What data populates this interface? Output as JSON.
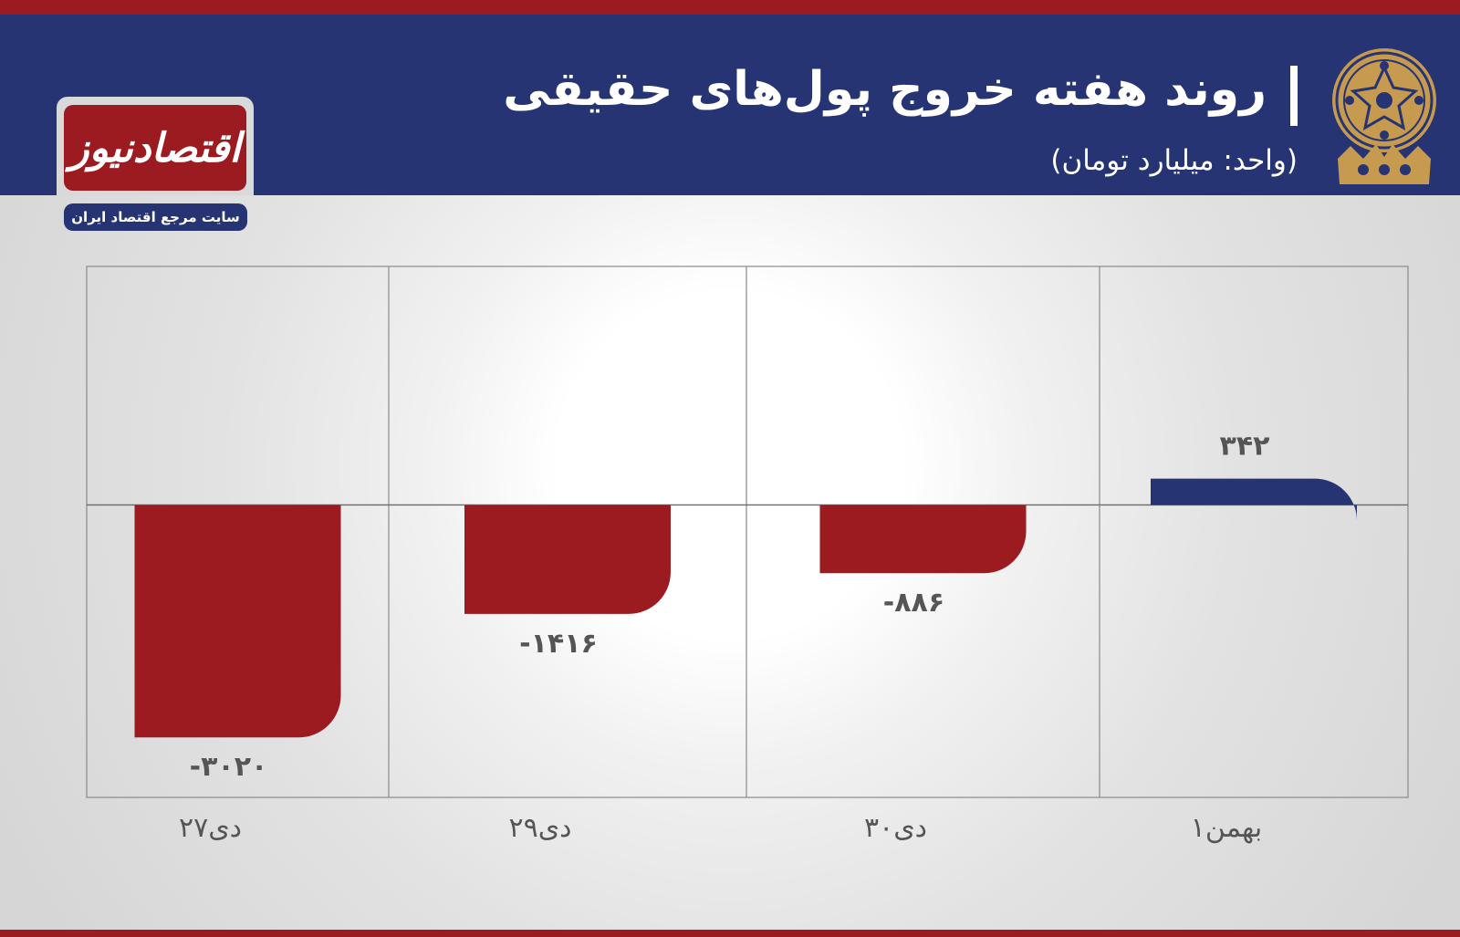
{
  "header": {
    "title": "روند هفته خروج پول‌های حقیقی",
    "subtitle": "(واحد: میلیارد تومان)"
  },
  "logo": {
    "name": "اقتصادنیوز",
    "tagline": "سایت مرجع اقتصاد ایران"
  },
  "icons": {
    "emblem": "exchange-emblem-icon"
  },
  "colors": {
    "header_bg": "#263474",
    "accent_red": "#9c1b20",
    "positive_bar": "#263474",
    "negative_bar": "#9c1b20"
  },
  "chart_data": {
    "type": "bar",
    "categories": [
      "۲۷دی",
      "۲۹دی",
      "۳۰دی",
      "۱بهمن"
    ],
    "values": [
      -3020,
      -1416,
      -886,
      342
    ],
    "value_labels": [
      "-۳۰۲۰",
      "-۱۴۱۶",
      "-۸۸۶",
      "۳۴۲"
    ],
    "ylim": [
      -3800,
      3100
    ],
    "grid": true,
    "legend": "none"
  }
}
